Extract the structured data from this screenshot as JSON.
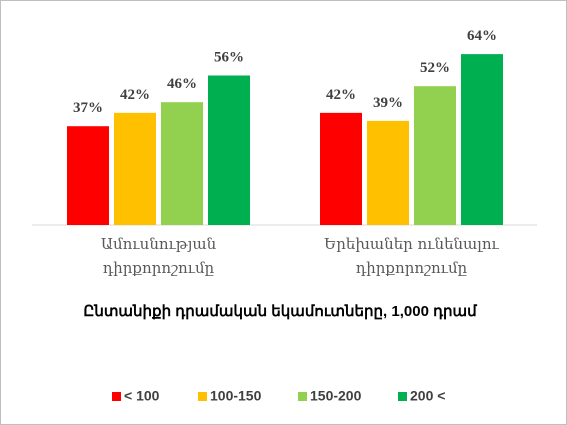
{
  "chart_data": {
    "type": "bar",
    "categories": [
      "Ամուսնության դիրքորոշումը",
      "Երեխաներ ունենալու դիրքորոշումը"
    ],
    "x_label": "Ընտանիքի դրամական եկամուտները, 1,000 դրամ",
    "series": [
      {
        "name": "< 100",
        "color": "#ff0000",
        "values": [
          37,
          42
        ],
        "value_labels": [
          "37%",
          "42%"
        ]
      },
      {
        "name": "100-150",
        "color": "#ffc000",
        "values": [
          42,
          39
        ],
        "value_labels": [
          "42%",
          "39%"
        ]
      },
      {
        "name": "150-200",
        "color": "#92d050",
        "values": [
          46,
          52
        ],
        "value_labels": [
          "46%",
          "52%"
        ]
      },
      {
        "name": "200 <",
        "color": "#00b050",
        "values": [
          56,
          64
        ],
        "value_labels": [
          "56%",
          "64%"
        ]
      }
    ],
    "legend": "bottom"
  }
}
